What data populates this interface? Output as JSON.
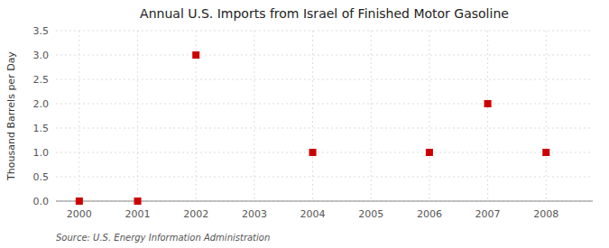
{
  "chart_data": {
    "type": "scatter",
    "title": "Annual U.S. Imports from Israel of Finished Motor Gasoline",
    "y_label": "Thousand Barrels per Day",
    "annotations": [
      "Source: U.S. Energy Information Administration"
    ],
    "x": [
      2000,
      2001,
      2002,
      2004,
      2006,
      2007,
      2008
    ],
    "y": [
      0.0,
      0.0,
      3.0,
      1.0,
      1.0,
      2.0,
      1.0
    ],
    "color": "#cc0000",
    "marker": "square",
    "xlim": [
      1999.6,
      2008.8
    ],
    "xticks": [
      2000,
      2001,
      2002,
      2003,
      2004,
      2005,
      2006,
      2007,
      2008
    ],
    "ylim": [
      0,
      3.5
    ],
    "yticks": [
      {
        "value": 0,
        "label": "0.0"
      },
      0.5,
      {
        "value": 1,
        "label": "1.0"
      },
      1.5,
      {
        "value": 2,
        "label": "2.0"
      },
      2.5,
      {
        "value": 3,
        "label": "3.0"
      },
      3.5
    ],
    "grid": true
  }
}
